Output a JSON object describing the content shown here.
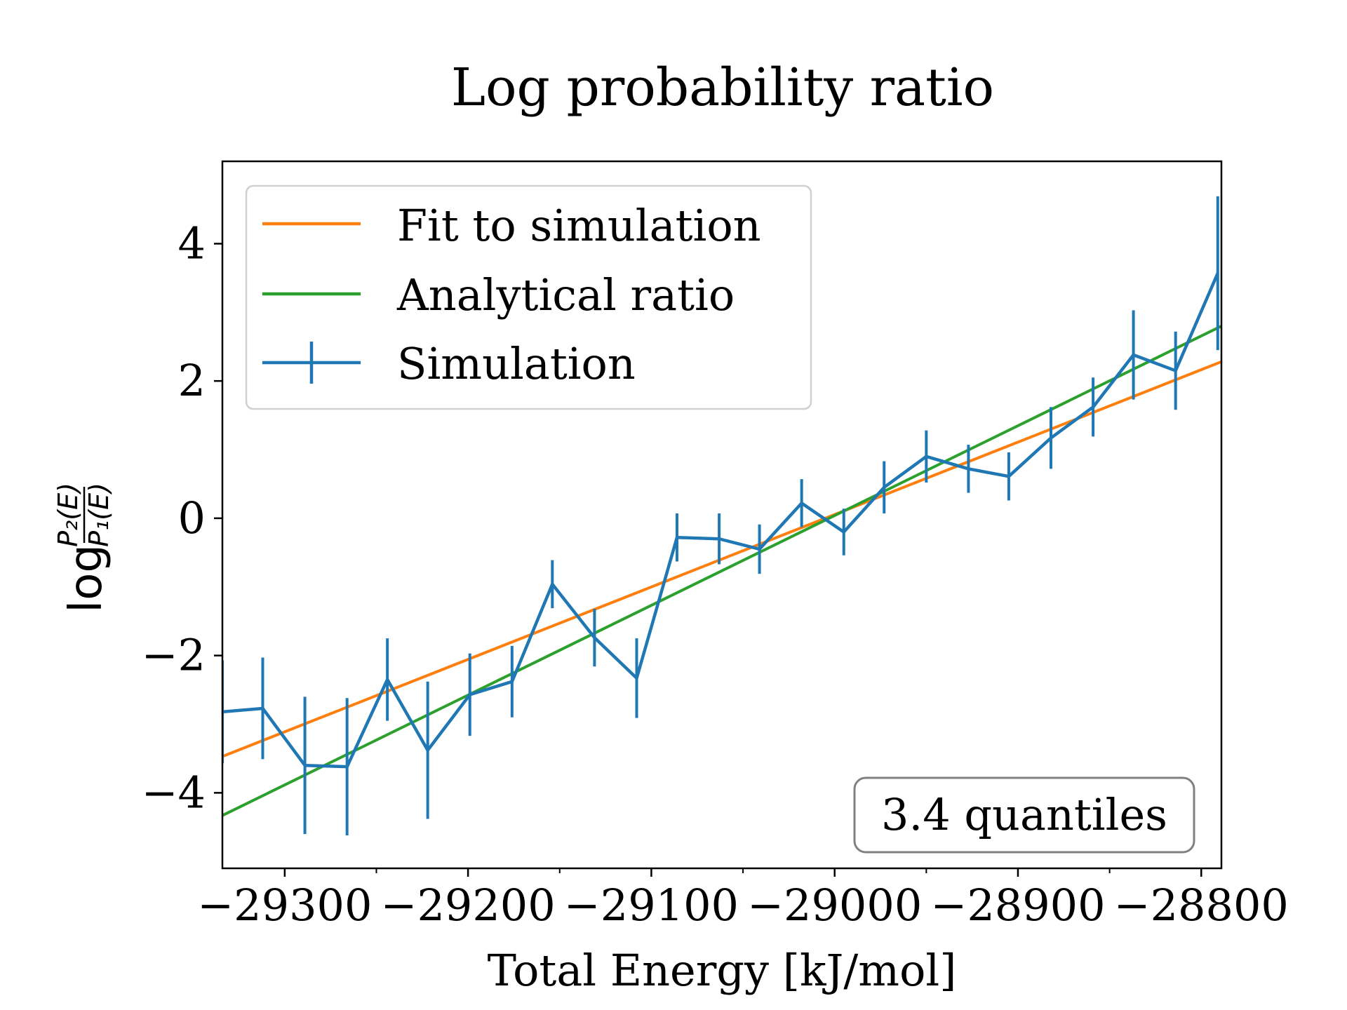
{
  "chart_data": {
    "type": "line",
    "title": "Log probability ratio",
    "xlabel": "Total Energy [kJ/mol]",
    "ylabel": {
      "prefix": "log",
      "numerator": "P₂(E)",
      "denominator": "P₁(E)"
    },
    "xlim": [
      -29334,
      -28789
    ],
    "ylim": [
      -5.1,
      5.2
    ],
    "xticks": [
      -29300,
      -29200,
      -29100,
      -29000,
      -28900,
      -28800
    ],
    "xtick_labels": [
      "−29300",
      "−29200",
      "−29100",
      "−29000",
      "−28900",
      "−28800"
    ],
    "xminor_ticks": [
      -29250,
      -29150,
      -29050,
      -28950,
      -28850
    ],
    "yticks": [
      -4,
      -2,
      0,
      2,
      4
    ],
    "ytick_labels": [
      "−4",
      "−2",
      "0",
      "2",
      "4"
    ],
    "grid": false,
    "legend_position": "upper-left",
    "annotation": "3.4 quantiles",
    "series": [
      {
        "name": "Fit to simulation",
        "kind": "line",
        "color": "#ff7f0e",
        "x": [
          -29334,
          -28789
        ],
        "y": [
          -3.47,
          2.28
        ]
      },
      {
        "name": "Analytical ratio",
        "kind": "line",
        "color": "#2ca02c",
        "x": [
          -29334,
          -28789
        ],
        "y": [
          -4.33,
          2.8
        ]
      },
      {
        "name": "Simulation",
        "kind": "errorbar",
        "color": "#1f77b4",
        "x": [
          -29334,
          -29312,
          -29289,
          -29266,
          -29244,
          -29222,
          -29199,
          -29176,
          -29154,
          -29131,
          -29108,
          -29086,
          -29063,
          -29041,
          -29018,
          -28995,
          -28973,
          -28950,
          -28927,
          -28905,
          -28882,
          -28859,
          -28837,
          -28814,
          -28791
        ],
        "y": [
          -2.82,
          -2.77,
          -3.6,
          -3.62,
          -2.35,
          -3.38,
          -2.57,
          -2.38,
          -0.96,
          -1.74,
          -2.33,
          -0.28,
          -0.3,
          -0.45,
          0.22,
          -0.2,
          0.45,
          0.9,
          0.72,
          0.61,
          1.17,
          1.62,
          2.38,
          2.15,
          3.57
        ],
        "yerr": [
          0.75,
          0.74,
          1.0,
          1.0,
          0.6,
          1.0,
          0.6,
          0.52,
          0.35,
          0.42,
          0.58,
          0.35,
          0.37,
          0.36,
          0.35,
          0.34,
          0.38,
          0.38,
          0.35,
          0.35,
          0.45,
          0.43,
          0.65,
          0.57,
          1.12
        ]
      }
    ]
  }
}
